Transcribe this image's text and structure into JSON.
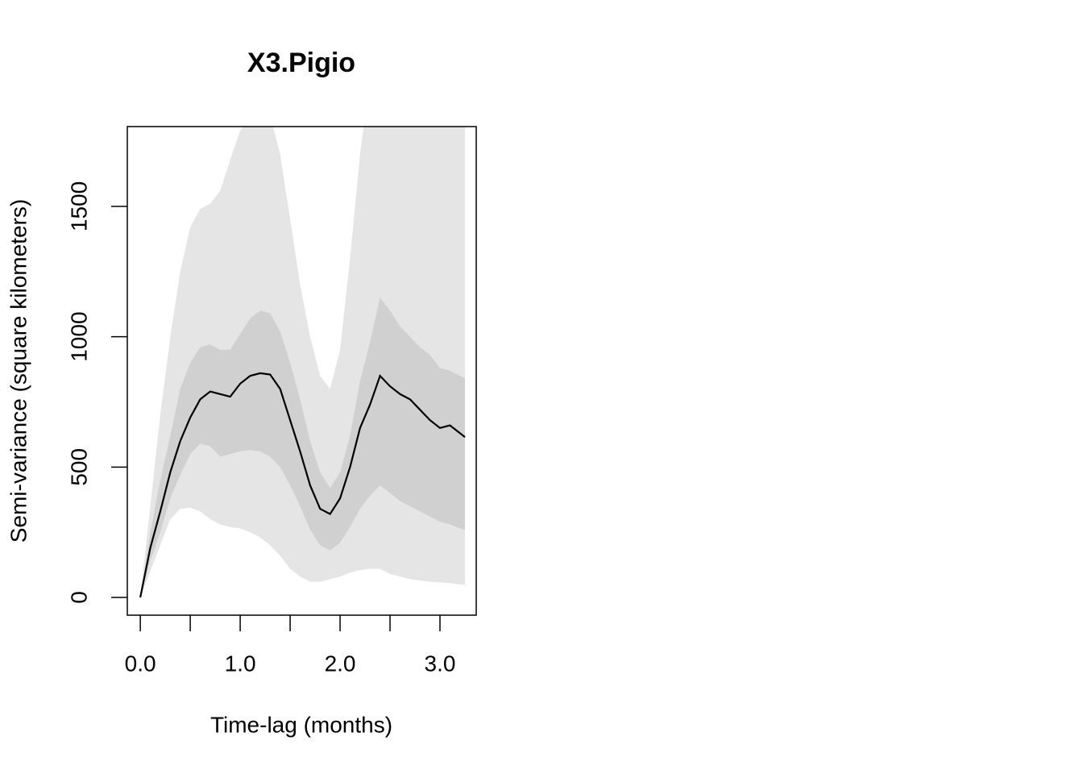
{
  "chart_data": {
    "type": "line",
    "title": "X3.Pigio",
    "x_label": "Time-lag (months)",
    "y_label": "Semi-variance (square kilometers)",
    "x": [
      0,
      0.1,
      0.2,
      0.3,
      0.4,
      0.5,
      0.6,
      0.7,
      0.8,
      0.9,
      1.0,
      1.1,
      1.2,
      1.3,
      1.4,
      1.5,
      1.6,
      1.7,
      1.8,
      1.9,
      2.0,
      2.1,
      2.2,
      2.3,
      2.4,
      2.5,
      2.6,
      2.7,
      2.8,
      2.9,
      3.0,
      3.1,
      3.2,
      3.25
    ],
    "values": [
      0,
      190,
      330,
      480,
      600,
      690,
      760,
      790,
      780,
      770,
      820,
      850,
      860,
      855,
      800,
      680,
      560,
      430,
      340,
      320,
      380,
      500,
      650,
      740,
      850,
      810,
      780,
      760,
      720,
      680,
      650,
      660,
      630,
      615
    ],
    "color": "#000000",
    "bands": [
      {
        "color": "#e5e5e5",
        "low": [
          0,
          100,
          200,
          300,
          340,
          345,
          330,
          300,
          280,
          270,
          265,
          250,
          230,
          200,
          160,
          110,
          80,
          60,
          60,
          70,
          80,
          95,
          105,
          110,
          110,
          90,
          80,
          70,
          65,
          60,
          58,
          55,
          50,
          48
        ],
        "high": [
          0,
          350,
          700,
          1000,
          1250,
          1420,
          1490,
          1510,
          1560,
          1680,
          1790,
          1850,
          1900,
          1850,
          1700,
          1450,
          1200,
          1000,
          850,
          800,
          950,
          1300,
          1700,
          2000,
          2100,
          2150,
          2200,
          2200,
          2200,
          2200,
          2200,
          2200,
          2200,
          2200
        ]
      },
      {
        "color": "#d0d0d0",
        "low": [
          0,
          140,
          250,
          380,
          470,
          550,
          590,
          580,
          540,
          550,
          560,
          565,
          560,
          540,
          500,
          430,
          350,
          260,
          200,
          180,
          210,
          270,
          340,
          390,
          430,
          400,
          370,
          350,
          330,
          310,
          290,
          280,
          265,
          260
        ],
        "high": [
          0,
          250,
          450,
          620,
          800,
          900,
          960,
          970,
          950,
          950,
          1010,
          1070,
          1100,
          1090,
          1020,
          900,
          760,
          600,
          480,
          420,
          480,
          620,
          830,
          980,
          1150,
          1100,
          1040,
          1000,
          960,
          930,
          880,
          870,
          850,
          840
        ]
      }
    ],
    "xlim": [
      -0.13,
      3.363
    ],
    "ylim": [
      -68,
      1806
    ],
    "xticks": [
      {
        "value": 0,
        "label": "0.0"
      },
      {
        "value": 1,
        "label": "1.0"
      },
      {
        "value": 2,
        "label": "2.0"
      },
      {
        "value": 3,
        "label": "3.0"
      }
    ],
    "xminorticks": [
      0.5,
      1.5,
      2.5
    ],
    "yticks": [
      0,
      500,
      1000,
      1500
    ]
  }
}
